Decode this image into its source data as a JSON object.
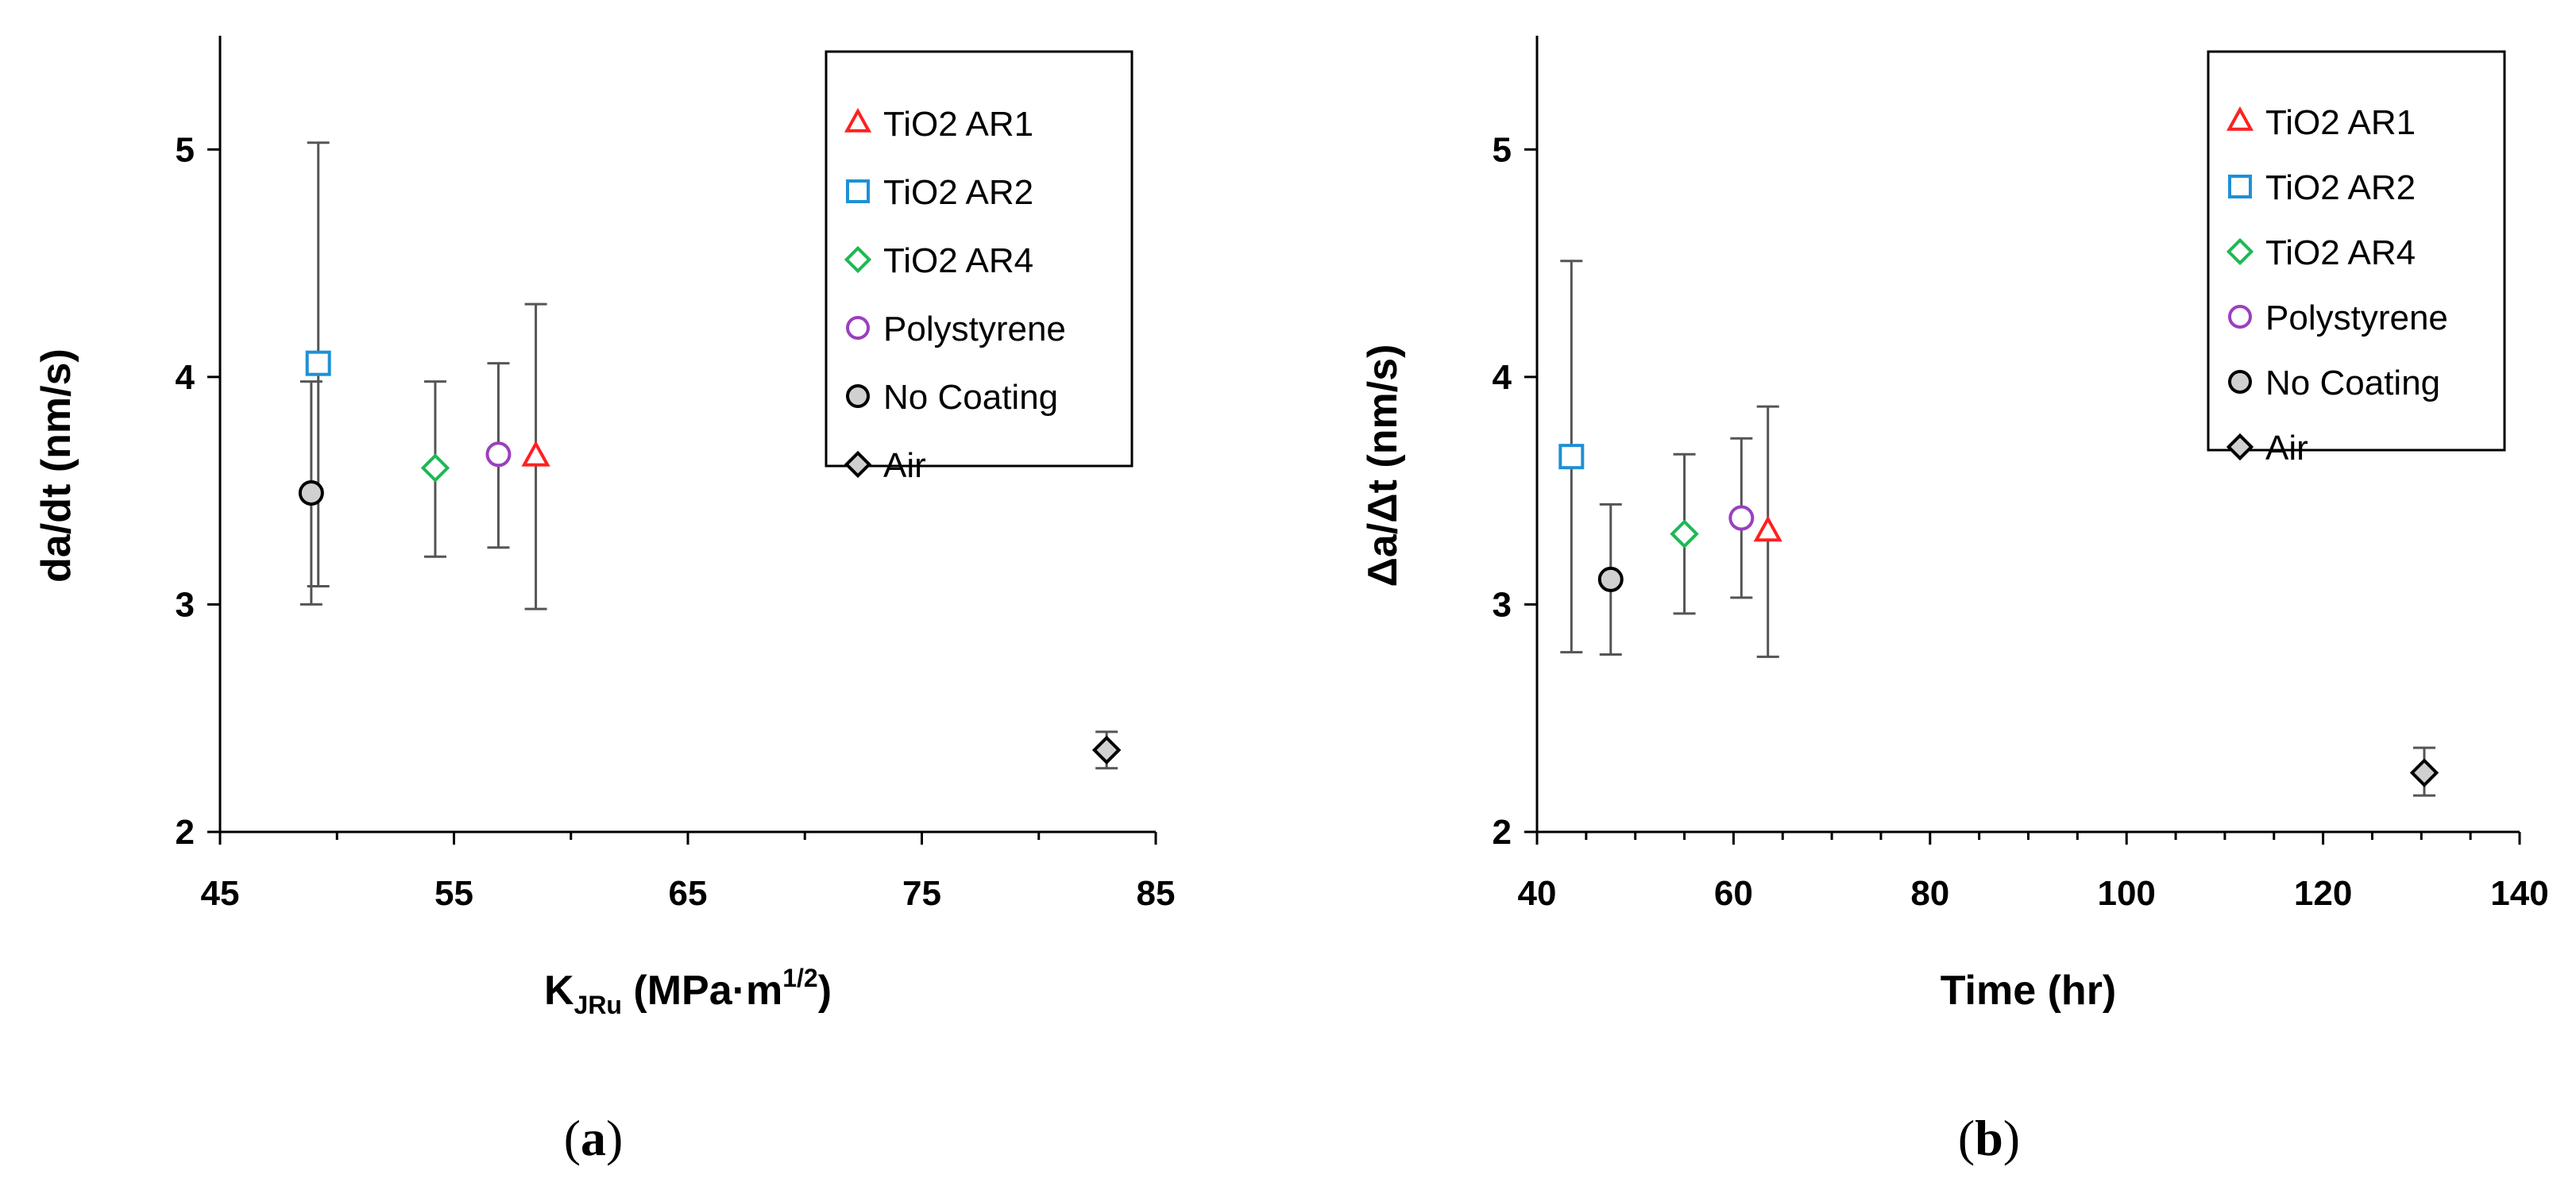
{
  "chart_data": [
    {
      "type": "scatter",
      "panel_label": "a",
      "title": "",
      "ylabel": "da/dt (nm/s)",
      "xlabel": {
        "main": "K",
        "sub": "JRu",
        "rest": " (MPa·m",
        "sup": "1/2",
        "close": ")"
      },
      "xlim": [
        45,
        85
      ],
      "ylim": [
        2,
        5.5
      ],
      "xticks": [
        45,
        55,
        65,
        75,
        85
      ],
      "xticks_minor": [
        50,
        60,
        70,
        80
      ],
      "yticks": [
        2,
        3,
        4,
        5
      ],
      "grid": false,
      "legend_position": "top-right",
      "series": [
        {
          "name": "TiO2  AR1",
          "marker": "triangle",
          "color": "#ff2020",
          "fill": "none",
          "x": 58.5,
          "y": 3.65,
          "err_low": 2.98,
          "err_high": 4.32
        },
        {
          "name": "TiO2  AR2",
          "marker": "square",
          "color": "#1e90d6",
          "fill": "none",
          "x": 49.2,
          "y": 4.06,
          "err_low": 3.08,
          "err_high": 5.03
        },
        {
          "name": "TiO2  AR4",
          "marker": "diamond",
          "color": "#1db954",
          "fill": "none",
          "x": 54.2,
          "y": 3.6,
          "err_low": 3.21,
          "err_high": 3.98
        },
        {
          "name": "Polystyrene",
          "marker": "circle",
          "color": "#9b3fbf",
          "fill": "none",
          "x": 56.9,
          "y": 3.66,
          "err_low": 3.25,
          "err_high": 4.06
        },
        {
          "name": "No Coating",
          "marker": "circle",
          "color": "#000000",
          "fill": "#d0d0d0",
          "x": 48.9,
          "y": 3.49,
          "err_low": 3.0,
          "err_high": 3.98
        },
        {
          "name": "Air",
          "marker": "diamond",
          "color": "#000000",
          "fill": "#d0d0d0",
          "x": 82.9,
          "y": 2.36,
          "err_low": 2.28,
          "err_high": 2.44
        }
      ]
    },
    {
      "type": "scatter",
      "panel_label": "b",
      "title": "",
      "ylabel": "Δa/Δt (nm/s)",
      "xlabel": "Time (hr)",
      "xlim": [
        40,
        140
      ],
      "ylim": [
        2,
        5.5
      ],
      "xticks": [
        40,
        60,
        80,
        100,
        120,
        140
      ],
      "xticks_minor": [
        45,
        50,
        55,
        65,
        70,
        75,
        85,
        90,
        95,
        105,
        110,
        115,
        125,
        130,
        135
      ],
      "yticks": [
        2,
        3,
        4,
        5
      ],
      "grid": false,
      "legend_position": "top-right",
      "series": [
        {
          "name": "TiO2  AR1",
          "marker": "triangle",
          "color": "#ff2020",
          "fill": "none",
          "x": 63.5,
          "y": 3.32,
          "err_low": 2.77,
          "err_high": 3.87
        },
        {
          "name": "TiO2  AR2",
          "marker": "square",
          "color": "#1e90d6",
          "fill": "none",
          "x": 43.5,
          "y": 3.65,
          "err_low": 2.79,
          "err_high": 4.51
        },
        {
          "name": "TiO2  AR4",
          "marker": "diamond",
          "color": "#1db954",
          "fill": "none",
          "x": 55.0,
          "y": 3.31,
          "err_low": 2.96,
          "err_high": 3.66
        },
        {
          "name": "Polystyrene",
          "marker": "circle",
          "color": "#9b3fbf",
          "fill": "none",
          "x": 60.8,
          "y": 3.38,
          "err_low": 3.03,
          "err_high": 3.73
        },
        {
          "name": "No Coating",
          "marker": "circle",
          "color": "#000000",
          "fill": "#d0d0d0",
          "x": 47.5,
          "y": 3.11,
          "err_low": 2.78,
          "err_high": 3.44
        },
        {
          "name": "Air",
          "marker": "diamond",
          "color": "#000000",
          "fill": "#d0d0d0",
          "x": 130.3,
          "y": 2.26,
          "err_low": 2.16,
          "err_high": 2.37
        }
      ]
    }
  ]
}
